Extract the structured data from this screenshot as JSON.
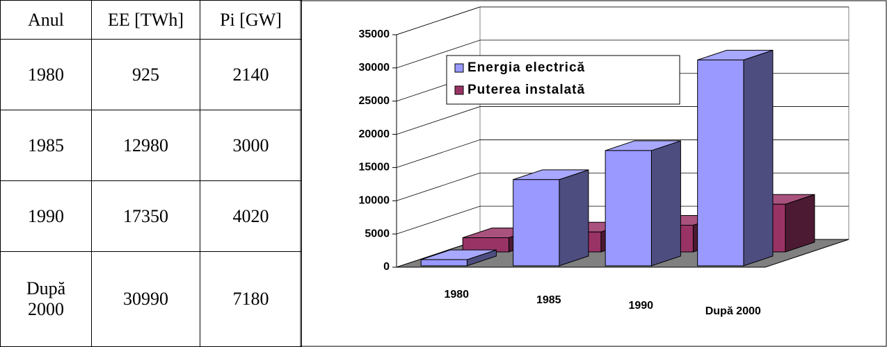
{
  "table": {
    "header": [
      "Anul",
      "EE [TWh]",
      "Pi [GW]"
    ],
    "rows": [
      [
        "1980",
        925,
        2140
      ],
      [
        "1985",
        12980,
        3000
      ],
      [
        "1990",
        17350,
        4020
      ],
      [
        "După 2000",
        30990,
        7180
      ]
    ]
  },
  "chart_data": {
    "type": "bar3d",
    "categories": [
      "1980",
      "1985",
      "1990",
      "După 2000"
    ],
    "series": [
      {
        "name": "Energia electrică",
        "color": "#9999ff",
        "values": [
          925,
          12980,
          17350,
          30990
        ]
      },
      {
        "name": "Puterea instalată",
        "color": "#993366",
        "values": [
          2140,
          3000,
          4020,
          7180
        ]
      }
    ],
    "ylim": [
      0,
      35000
    ],
    "yticks": [
      0,
      5000,
      10000,
      15000,
      20000,
      25000,
      30000,
      35000
    ],
    "grid": true,
    "legend": "top"
  }
}
